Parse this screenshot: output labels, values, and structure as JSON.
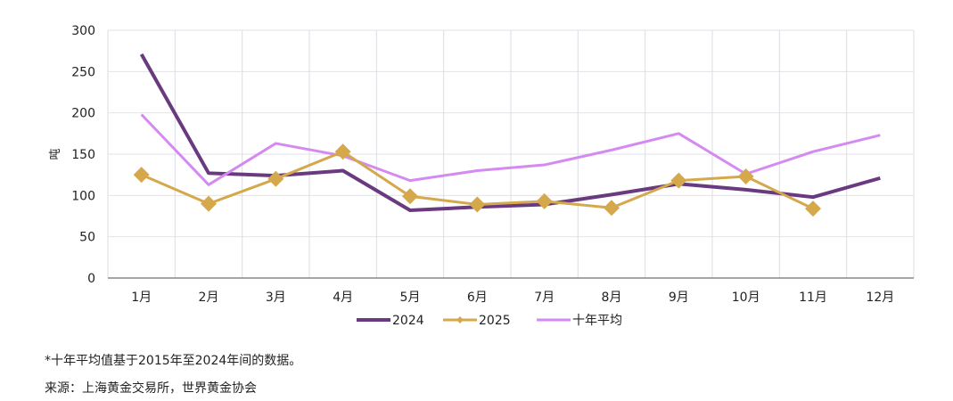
{
  "chart_data": {
    "type": "line",
    "ylabel": "吨",
    "ylim": [
      0,
      300
    ],
    "yticks": [
      0,
      50,
      100,
      150,
      200,
      250,
      300
    ],
    "categories": [
      "1月",
      "2月",
      "3月",
      "4月",
      "5月",
      "6月",
      "7月",
      "8月",
      "9月",
      "10月",
      "11月",
      "12月"
    ],
    "grid": true,
    "legend_position": "bottom",
    "series": [
      {
        "name": "2024",
        "color": "#6a3a80",
        "values": [
          271,
          127,
          124,
          130,
          82,
          86,
          89,
          101,
          114,
          107,
          98,
          121
        ]
      },
      {
        "name": "2025",
        "color": "#d4a84b",
        "marker": "diamond",
        "values": [
          125,
          90,
          120,
          153,
          99,
          89,
          93,
          85,
          118,
          123,
          84,
          null
        ]
      },
      {
        "name": "十年平均",
        "color": "#d48af0",
        "values": [
          198,
          113,
          163,
          148,
          118,
          130,
          137,
          155,
          175,
          126,
          153,
          173
        ]
      }
    ]
  },
  "notes": {
    "footnote": "*十年平均值基于2015年至2024年间的数据。",
    "source": "来源：上海黄金交易所，世界黄金协会"
  }
}
